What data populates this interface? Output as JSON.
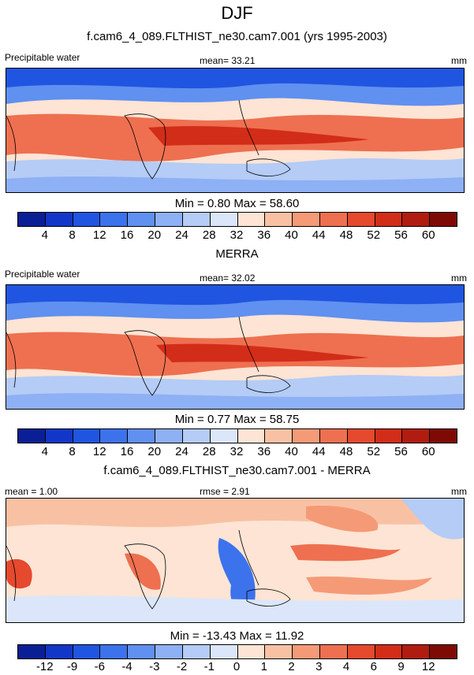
{
  "figure": {
    "season": "DJF"
  },
  "panels": [
    {
      "title": "f.cam6_4_089.FLTHIST_ne30.cam7.001 (yrs 1995-2003)",
      "left_label": "Precipitable water",
      "center_label": "mean=  33.21",
      "units": "mm",
      "stats": "Min =   0.80 Max =  58.60",
      "colorbar_ticks": [
        "4",
        "8",
        "12",
        "16",
        "20",
        "24",
        "28",
        "32",
        "36",
        "40",
        "44",
        "48",
        "52",
        "56",
        "60"
      ]
    },
    {
      "title": "MERRA",
      "left_label": "Precipitable water",
      "center_label": "mean=  32.02",
      "units": "mm",
      "stats": "Min =   0.77 Max =  58.75",
      "colorbar_ticks": [
        "4",
        "8",
        "12",
        "16",
        "20",
        "24",
        "28",
        "32",
        "36",
        "40",
        "44",
        "48",
        "52",
        "56",
        "60"
      ]
    },
    {
      "title": "f.cam6_4_089.FLTHIST_ne30.cam7.001 - MERRA",
      "left_label": "mean =   1.00",
      "center_label": "rmse =   2.91",
      "units": "mm",
      "stats": "Min = -13.43 Max =  11.92",
      "colorbar_ticks": [
        "-12",
        "-9",
        "-6",
        "-4",
        "-3",
        "-2",
        "-1",
        "0",
        "1",
        "2",
        "3",
        "4",
        "6",
        "9",
        "12"
      ]
    }
  ],
  "colormap": [
    "#0a1f96",
    "#1237c8",
    "#1f55e0",
    "#3c72ec",
    "#6090f0",
    "#8eb0f4",
    "#b4ccf6",
    "#dbe6fa",
    "#fde4d4",
    "#f9c1a4",
    "#f59a76",
    "#ee7050",
    "#e5492e",
    "#d22d18",
    "#b01c10",
    "#7e0a05"
  ]
}
